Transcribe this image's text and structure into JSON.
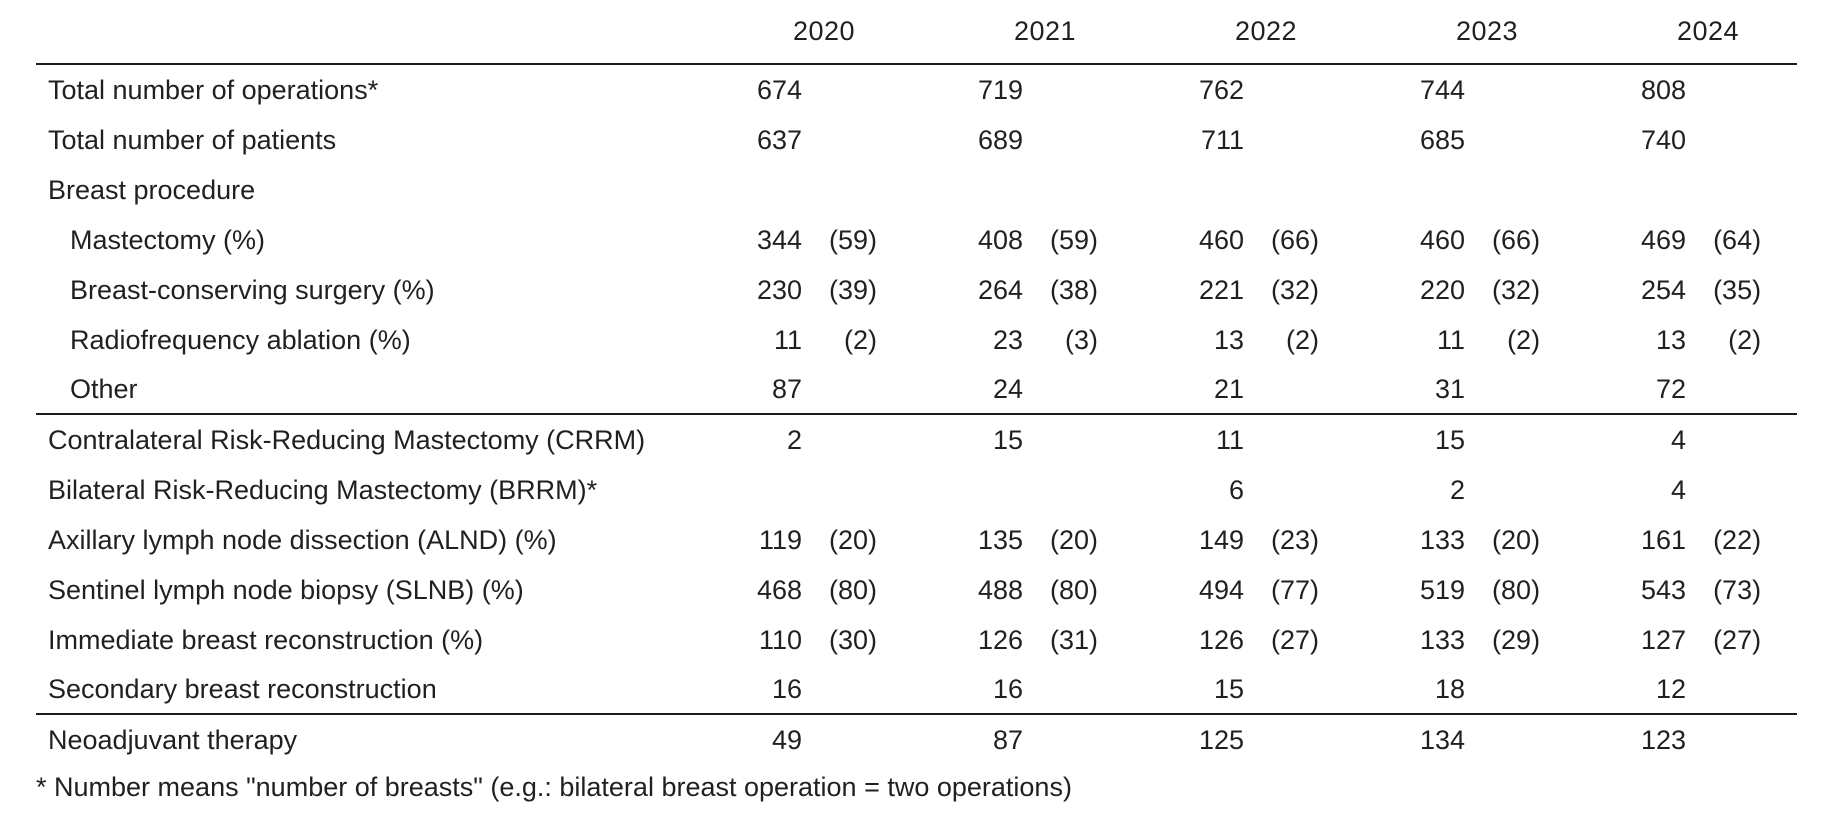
{
  "colors": {
    "background": "#ffffff",
    "text": "#231f20",
    "rule": "#1c1c1c"
  },
  "table": {
    "years": [
      "2020",
      "2021",
      "2022",
      "2023",
      "2024"
    ],
    "rows": [
      {
        "label": "Total number of operations*",
        "indent": false,
        "rule_after": false,
        "cells": [
          {
            "v": "674",
            "p": ""
          },
          {
            "v": "719",
            "p": ""
          },
          {
            "v": "762",
            "p": ""
          },
          {
            "v": "744",
            "p": ""
          },
          {
            "v": "808",
            "p": ""
          }
        ]
      },
      {
        "label": "Total number of patients",
        "indent": false,
        "rule_after": false,
        "cells": [
          {
            "v": "637",
            "p": ""
          },
          {
            "v": "689",
            "p": ""
          },
          {
            "v": "711",
            "p": ""
          },
          {
            "v": "685",
            "p": ""
          },
          {
            "v": "740",
            "p": ""
          }
        ]
      },
      {
        "label": "Breast procedure",
        "indent": false,
        "rule_after": false,
        "cells": [
          {
            "v": "",
            "p": ""
          },
          {
            "v": "",
            "p": ""
          },
          {
            "v": "",
            "p": ""
          },
          {
            "v": "",
            "p": ""
          },
          {
            "v": "",
            "p": ""
          }
        ]
      },
      {
        "label": "Mastectomy (%)",
        "indent": true,
        "rule_after": false,
        "cells": [
          {
            "v": "344",
            "p": "(59)"
          },
          {
            "v": "408",
            "p": "(59)"
          },
          {
            "v": "460",
            "p": "(66)"
          },
          {
            "v": "460",
            "p": "(66)"
          },
          {
            "v": "469",
            "p": "(64)"
          }
        ]
      },
      {
        "label": "Breast-conserving surgery (%)",
        "indent": true,
        "rule_after": false,
        "cells": [
          {
            "v": "230",
            "p": "(39)"
          },
          {
            "v": "264",
            "p": "(38)"
          },
          {
            "v": "221",
            "p": "(32)"
          },
          {
            "v": "220",
            "p": "(32)"
          },
          {
            "v": "254",
            "p": "(35)"
          }
        ]
      },
      {
        "label": "Radiofrequency ablation (%)",
        "indent": true,
        "rule_after": false,
        "cells": [
          {
            "v": "11",
            "p": "(2)"
          },
          {
            "v": "23",
            "p": "(3)"
          },
          {
            "v": "13",
            "p": "(2)"
          },
          {
            "v": "11",
            "p": "(2)"
          },
          {
            "v": "13",
            "p": "(2)"
          }
        ]
      },
      {
        "label": "Other",
        "indent": true,
        "rule_after": true,
        "cells": [
          {
            "v": "87",
            "p": ""
          },
          {
            "v": "24",
            "p": ""
          },
          {
            "v": "21",
            "p": ""
          },
          {
            "v": "31",
            "p": ""
          },
          {
            "v": "72",
            "p": ""
          }
        ]
      },
      {
        "label": "Contralateral Risk-Reducing Mastectomy (CRRM)",
        "indent": false,
        "rule_after": false,
        "cells": [
          {
            "v": "2",
            "p": ""
          },
          {
            "v": "15",
            "p": ""
          },
          {
            "v": "11",
            "p": ""
          },
          {
            "v": "15",
            "p": ""
          },
          {
            "v": "4",
            "p": ""
          }
        ]
      },
      {
        "label": "Bilateral Risk-Reducing Mastectomy (BRRM)*",
        "indent": false,
        "rule_after": false,
        "cells": [
          {
            "v": "",
            "p": ""
          },
          {
            "v": "",
            "p": ""
          },
          {
            "v": "6",
            "p": ""
          },
          {
            "v": "2",
            "p": ""
          },
          {
            "v": "4",
            "p": ""
          }
        ]
      },
      {
        "label": "Axillary lymph node dissection (ALND) (%)",
        "indent": false,
        "rule_after": false,
        "cells": [
          {
            "v": "119",
            "p": "(20)"
          },
          {
            "v": "135",
            "p": "(20)"
          },
          {
            "v": "149",
            "p": "(23)"
          },
          {
            "v": "133",
            "p": "(20)"
          },
          {
            "v": "161",
            "p": "(22)"
          }
        ]
      },
      {
        "label": "Sentinel lymph node biopsy (SLNB) (%)",
        "indent": false,
        "rule_after": false,
        "cells": [
          {
            "v": "468",
            "p": "(80)"
          },
          {
            "v": "488",
            "p": "(80)"
          },
          {
            "v": "494",
            "p": "(77)"
          },
          {
            "v": "519",
            "p": "(80)"
          },
          {
            "v": "543",
            "p": "(73)"
          }
        ]
      },
      {
        "label": "Immediate breast reconstruction (%)",
        "indent": false,
        "rule_after": false,
        "cells": [
          {
            "v": "110",
            "p": "(30)"
          },
          {
            "v": "126",
            "p": "(31)"
          },
          {
            "v": "126",
            "p": "(27)"
          },
          {
            "v": "133",
            "p": "(29)"
          },
          {
            "v": "127",
            "p": "(27)"
          }
        ]
      },
      {
        "label": "Secondary breast reconstruction",
        "indent": false,
        "rule_after": true,
        "cells": [
          {
            "v": "16",
            "p": ""
          },
          {
            "v": "16",
            "p": ""
          },
          {
            "v": "15",
            "p": ""
          },
          {
            "v": "18",
            "p": ""
          },
          {
            "v": "12",
            "p": ""
          }
        ]
      },
      {
        "label": "Neoadjuvant therapy",
        "indent": false,
        "rule_after": false,
        "cells": [
          {
            "v": "49",
            "p": ""
          },
          {
            "v": "87",
            "p": ""
          },
          {
            "v": "125",
            "p": ""
          },
          {
            "v": "134",
            "p": ""
          },
          {
            "v": "123",
            "p": ""
          }
        ]
      }
    ],
    "footnote": "* Number means \"number of breasts\" (e.g.: bilateral breast operation = two operations)"
  }
}
